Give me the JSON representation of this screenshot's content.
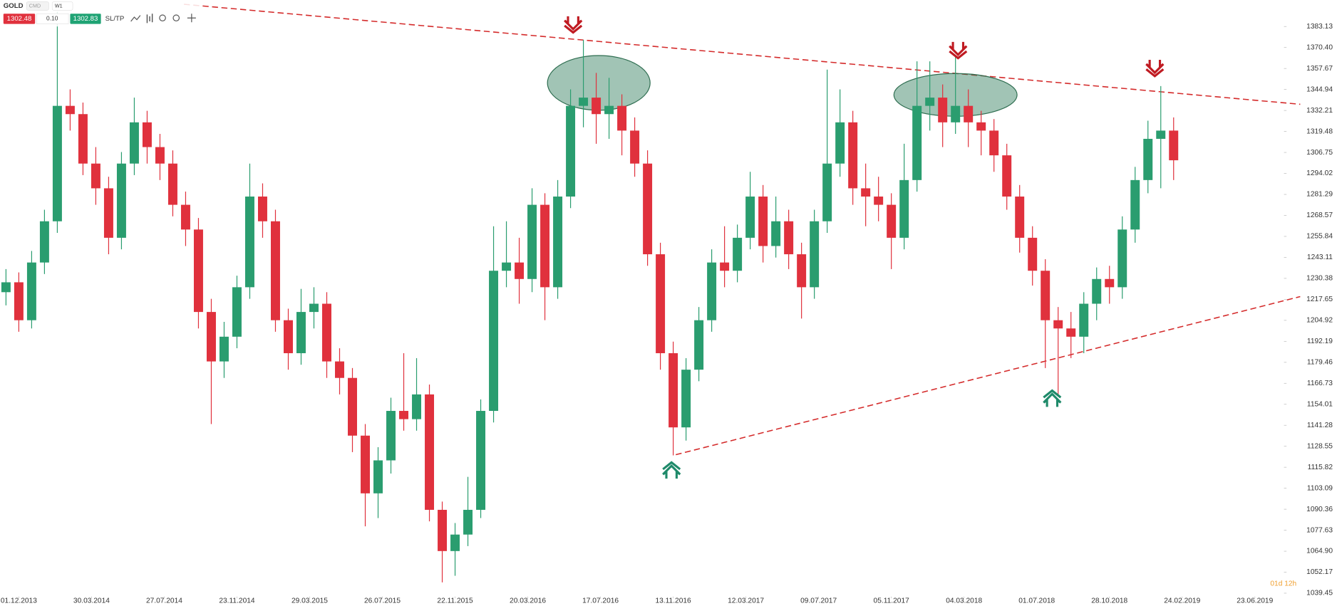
{
  "toolbar": {
    "symbol": "GOLD",
    "market": "CMD",
    "timeframe": "W1",
    "sell": "1302.48",
    "spread": "0.10",
    "buy": "1302.83",
    "sltp": "SL/TP",
    "countdown": "01d 12h"
  },
  "chart_data": {
    "type": "candlestick",
    "x": [
      -3,
      0,
      3,
      6,
      9,
      12,
      15,
      18,
      21,
      24,
      27,
      30,
      33,
      36,
      39,
      42,
      45,
      48,
      51,
      54,
      57,
      60,
      63,
      66,
      69,
      72,
      75,
      78,
      81,
      84,
      87,
      90,
      93,
      96,
      99,
      102,
      105,
      108,
      111,
      114,
      117,
      120,
      123,
      126,
      129,
      132,
      135,
      138,
      141,
      144,
      147,
      150,
      153,
      156,
      159,
      162,
      165,
      168,
      171,
      174,
      177,
      180,
      183,
      186,
      189,
      192,
      195,
      198,
      201,
      204,
      207,
      210,
      213,
      216,
      219,
      222,
      225,
      228,
      231,
      234,
      237,
      240,
      243,
      246,
      249,
      252,
      255,
      258,
      261,
      264,
      267,
      270
    ],
    "open": [
      1222,
      1228,
      1205,
      1240,
      1265,
      1335,
      1330,
      1300,
      1285,
      1255,
      1300,
      1325,
      1310,
      1300,
      1275,
      1260,
      1210,
      1180,
      1195,
      1225,
      1280,
      1265,
      1205,
      1185,
      1210,
      1215,
      1180,
      1170,
      1135,
      1100,
      1120,
      1150,
      1145,
      1160,
      1090,
      1065,
      1075,
      1090,
      1150,
      1235,
      1240,
      1230,
      1275,
      1225,
      1280,
      1335,
      1340,
      1330,
      1335,
      1320,
      1300,
      1245,
      1185,
      1140,
      1175,
      1205,
      1240,
      1235,
      1255,
      1280,
      1250,
      1265,
      1245,
      1225,
      1265,
      1300,
      1325,
      1285,
      1280,
      1275,
      1255,
      1290,
      1335,
      1340,
      1325,
      1335,
      1325,
      1320,
      1305,
      1280,
      1255,
      1235,
      1205,
      1200,
      1195,
      1215,
      1230,
      1225,
      1260,
      1290,
      1315,
      1320
    ],
    "high": [
      1236,
      1234,
      1247,
      1272,
      1392,
      1345,
      1337,
      1310,
      1292,
      1307,
      1340,
      1332,
      1318,
      1308,
      1283,
      1267,
      1218,
      1204,
      1232,
      1300,
      1288,
      1272,
      1212,
      1224,
      1225,
      1222,
      1188,
      1176,
      1142,
      1128,
      1158,
      1185,
      1182,
      1166,
      1095,
      1082,
      1110,
      1157,
      1262,
      1265,
      1255,
      1285,
      1282,
      1290,
      1345,
      1375,
      1355,
      1352,
      1342,
      1328,
      1308,
      1252,
      1192,
      1182,
      1213,
      1248,
      1262,
      1263,
      1295,
      1287,
      1280,
      1272,
      1252,
      1272,
      1357,
      1345,
      1332,
      1300,
      1292,
      1282,
      1312,
      1362,
      1362,
      1348,
      1365,
      1345,
      1332,
      1327,
      1312,
      1287,
      1262,
      1242,
      1213,
      1210,
      1222,
      1237,
      1238,
      1268,
      1298,
      1326,
      1347,
      1328
    ],
    "low": [
      1214,
      1198,
      1200,
      1233,
      1258,
      1320,
      1293,
      1275,
      1245,
      1248,
      1293,
      1300,
      1290,
      1268,
      1250,
      1200,
      1142,
      1170,
      1188,
      1218,
      1255,
      1198,
      1175,
      1178,
      1200,
      1170,
      1160,
      1125,
      1080,
      1085,
      1112,
      1138,
      1138,
      1083,
      1046,
      1050,
      1068,
      1085,
      1143,
      1225,
      1215,
      1222,
      1205,
      1218,
      1273,
      1322,
      1312,
      1315,
      1305,
      1292,
      1238,
      1175,
      1123,
      1132,
      1168,
      1198,
      1225,
      1228,
      1248,
      1240,
      1243,
      1236,
      1206,
      1218,
      1258,
      1292,
      1275,
      1262,
      1265,
      1236,
      1248,
      1283,
      1320,
      1310,
      1318,
      1310,
      1305,
      1295,
      1272,
      1246,
      1226,
      1176,
      1160,
      1182,
      1185,
      1205,
      1215,
      1218,
      1252,
      1282,
      1285,
      1290
    ],
    "close": [
      1228,
      1205,
      1240,
      1265,
      1335,
      1330,
      1300,
      1285,
      1255,
      1300,
      1325,
      1310,
      1300,
      1275,
      1260,
      1210,
      1180,
      1195,
      1225,
      1280,
      1265,
      1205,
      1185,
      1210,
      1215,
      1180,
      1170,
      1135,
      1100,
      1120,
      1150,
      1145,
      1160,
      1090,
      1065,
      1075,
      1090,
      1150,
      1235,
      1240,
      1230,
      1275,
      1225,
      1280,
      1335,
      1340,
      1330,
      1335,
      1320,
      1300,
      1245,
      1185,
      1140,
      1175,
      1205,
      1240,
      1235,
      1255,
      1280,
      1250,
      1265,
      1245,
      1225,
      1265,
      1300,
      1325,
      1285,
      1280,
      1275,
      1255,
      1290,
      1335,
      1340,
      1325,
      1335,
      1325,
      1320,
      1305,
      1280,
      1255,
      1235,
      1205,
      1200,
      1195,
      1215,
      1230,
      1225,
      1260,
      1290,
      1315,
      1320,
      1302
    ],
    "up_color": "#2a9d6f",
    "down_color": "#e0313d",
    "xlim": [
      -4.4,
      295.6
    ],
    "xticks": [
      {
        "value": 0,
        "label": "01.12.2013"
      },
      {
        "value": 17,
        "label": "30.03.2014"
      },
      {
        "value": 34,
        "label": "27.07.2014"
      },
      {
        "value": 51,
        "label": "23.11.2014"
      },
      {
        "value": 68,
        "label": "29.03.2015"
      },
      {
        "value": 85,
        "label": "26.07.2015"
      },
      {
        "value": 102,
        "label": "22.11.2015"
      },
      {
        "value": 119,
        "label": "20.03.2016"
      },
      {
        "value": 136,
        "label": "17.07.2016"
      },
      {
        "value": 153,
        "label": "13.11.2016"
      },
      {
        "value": 170,
        "label": "12.03.2017"
      },
      {
        "value": 187,
        "label": "09.07.2017"
      },
      {
        "value": 204,
        "label": "05.11.2017"
      },
      {
        "value": 221,
        "label": "04.03.2018"
      },
      {
        "value": 238,
        "label": "01.07.2018"
      },
      {
        "value": 255,
        "label": "28.10.2018"
      },
      {
        "value": 272,
        "label": "24.02.2019"
      },
      {
        "value": 289,
        "label": "23.06.2019"
      }
    ],
    "ylim": [
      1037.9,
      1399.2
    ],
    "yticks": [
      1039.45,
      1052.17,
      {
        "value": 1064.9,
        "label": "1064.90"
      },
      1077.63,
      1090.36,
      1103.09,
      1115.82,
      1128.55,
      1141.28,
      1154.01,
      1166.73,
      1179.46,
      1192.19,
      1204.92,
      1217.65,
      1230.38,
      1243.11,
      1255.84,
      1268.57,
      1281.29,
      1294.02,
      1306.75,
      1319.48,
      1332.21,
      1344.94,
      1357.67,
      {
        "value": 1370.4,
        "label": "1370.40"
      },
      1383.13
    ],
    "grid": false
  }
}
